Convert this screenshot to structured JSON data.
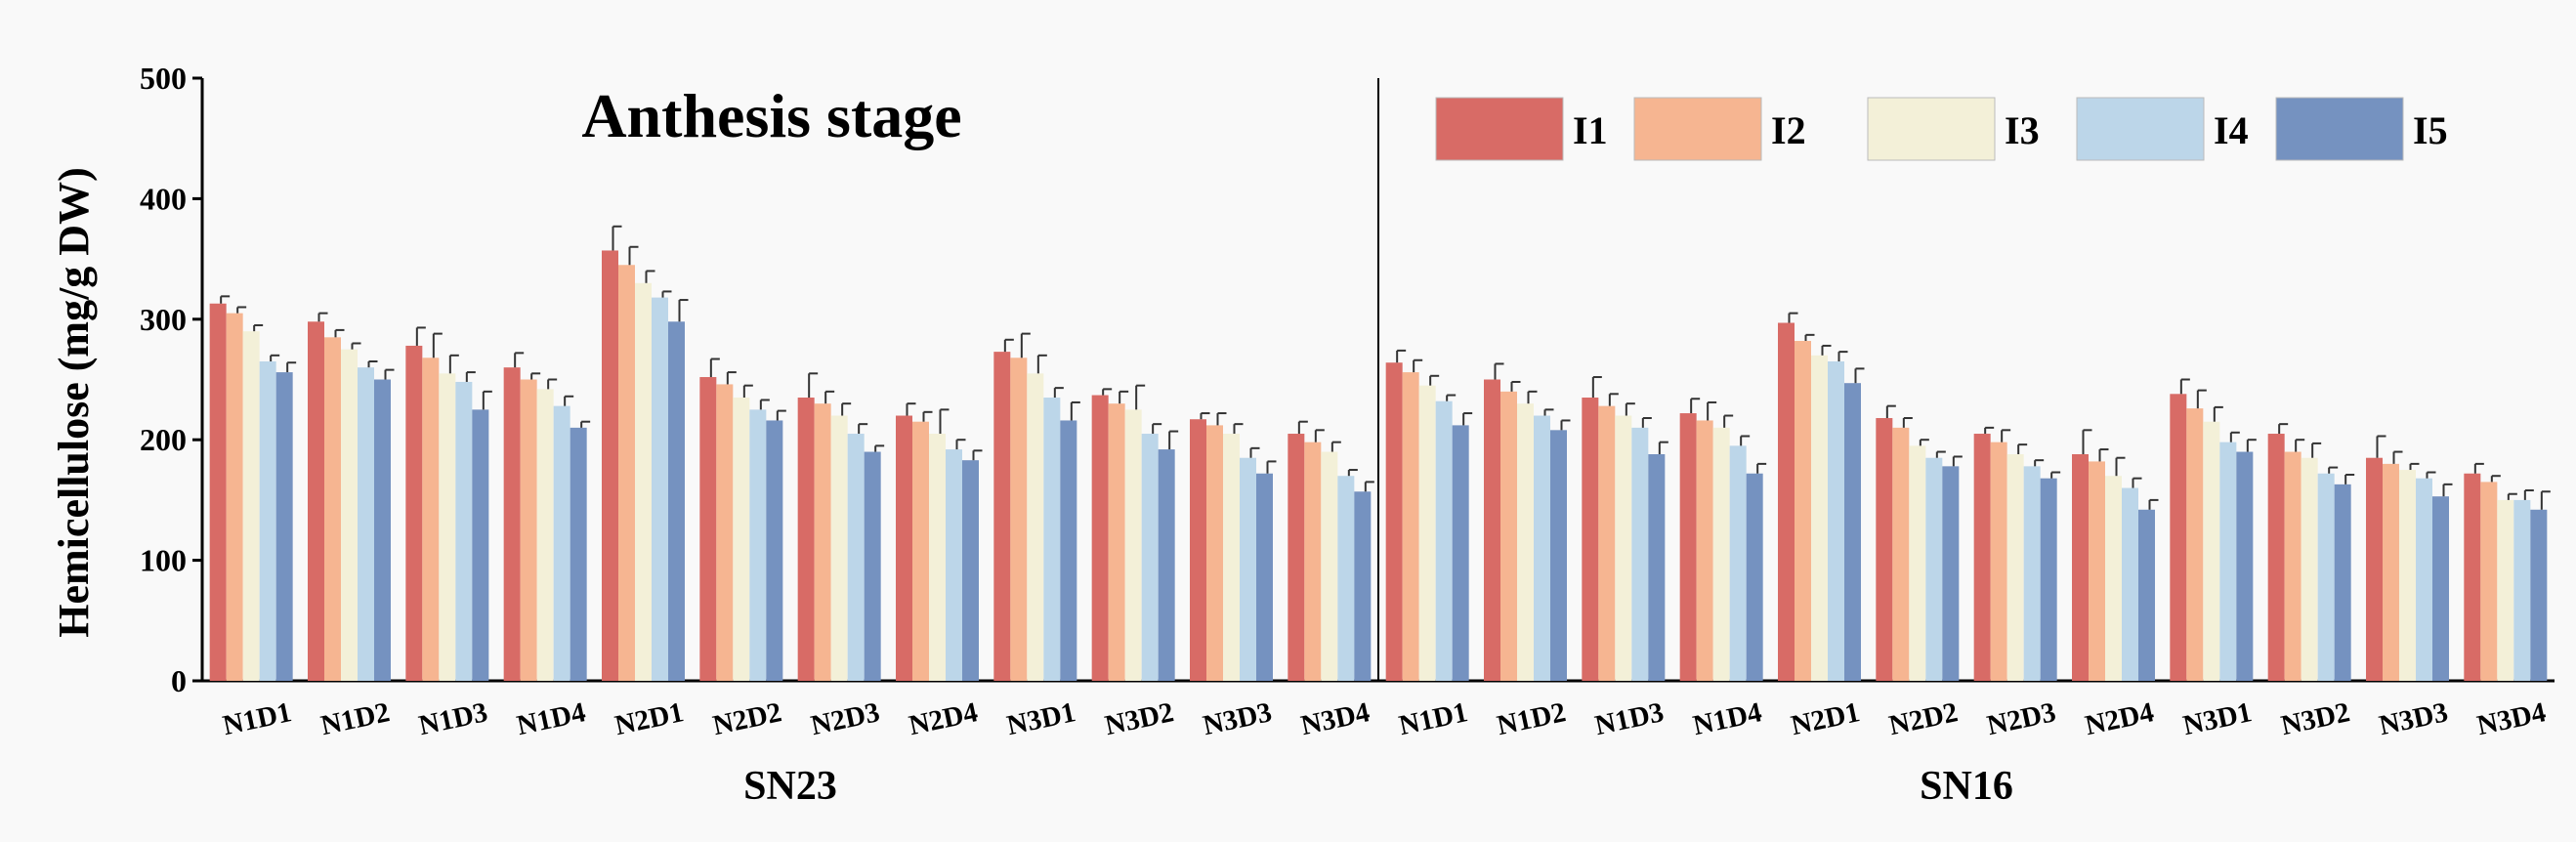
{
  "chart_data": {
    "type": "bar",
    "title": "Anthesis stage",
    "ylabel": "Hemicellulose (mg/g DW)",
    "xlabel": "",
    "ylim": [
      0,
      500
    ],
    "yticks": [
      0,
      100,
      200,
      300,
      400,
      500
    ],
    "legend_position": "top-right",
    "groups": [
      "SN23",
      "SN16"
    ],
    "categories": [
      "N1D1",
      "N1D2",
      "N1D3",
      "N1D4",
      "N2D1",
      "N2D2",
      "N2D3",
      "N2D4",
      "N3D1",
      "N3D2",
      "N3D3",
      "N3D4"
    ],
    "colors": [
      "#d86b66",
      "#f6b591",
      "#f3f0d8",
      "#bcd6e9",
      "#7592c0"
    ],
    "series": [
      {
        "name": "I1",
        "SN23": [
          313,
          298,
          278,
          260,
          357,
          252,
          235,
          220,
          273,
          237,
          217,
          205
        ],
        "SN16": [
          264,
          250,
          235,
          222,
          297,
          218,
          205,
          188,
          238,
          205,
          185,
          172
        ]
      },
      {
        "name": "I2",
        "SN23": [
          305,
          285,
          268,
          250,
          345,
          246,
          230,
          215,
          268,
          230,
          212,
          198
        ],
        "SN16": [
          256,
          240,
          228,
          216,
          282,
          210,
          198,
          182,
          226,
          190,
          180,
          165
        ]
      },
      {
        "name": "I3",
        "SN23": [
          290,
          275,
          255,
          242,
          330,
          235,
          220,
          205,
          255,
          225,
          205,
          190
        ],
        "SN16": [
          245,
          230,
          220,
          210,
          270,
          195,
          188,
          170,
          215,
          185,
          175,
          150
        ]
      },
      {
        "name": "I4",
        "SN23": [
          265,
          260,
          248,
          228,
          318,
          225,
          205,
          192,
          235,
          205,
          185,
          170
        ],
        "SN16": [
          232,
          220,
          210,
          195,
          265,
          185,
          178,
          160,
          198,
          172,
          168,
          150
        ]
      },
      {
        "name": "I5",
        "SN23": [
          256,
          250,
          225,
          210,
          298,
          216,
          190,
          183,
          216,
          192,
          172,
          157
        ],
        "SN16": [
          212,
          208,
          188,
          172,
          247,
          178,
          168,
          142,
          190,
          163,
          153,
          142
        ]
      }
    ],
    "errors": [
      {
        "SN23": [
          6,
          7,
          15,
          12,
          20,
          15,
          20,
          10,
          10,
          5,
          5,
          10
        ],
        "SN16": [
          10,
          13,
          17,
          12,
          8,
          10,
          5,
          20,
          12,
          8,
          18,
          8
        ]
      },
      {
        "SN23": [
          5,
          6,
          20,
          5,
          15,
          10,
          10,
          8,
          20,
          10,
          10,
          10
        ],
        "SN16": [
          10,
          8,
          10,
          15,
          5,
          8,
          10,
          10,
          15,
          10,
          10,
          5
        ]
      },
      {
        "SN23": [
          5,
          5,
          15,
          8,
          10,
          10,
          10,
          20,
          15,
          20,
          8,
          8
        ],
        "SN16": [
          8,
          10,
          10,
          10,
          8,
          5,
          8,
          15,
          12,
          12,
          5,
          5
        ]
      },
      {
        "SN23": [
          5,
          5,
          8,
          8,
          5,
          8,
          8,
          8,
          8,
          8,
          8,
          5
        ],
        "SN16": [
          5,
          5,
          8,
          8,
          8,
          5,
          5,
          8,
          8,
          5,
          5,
          8
        ]
      },
      {
        "SN23": [
          8,
          8,
          15,
          5,
          18,
          8,
          5,
          8,
          15,
          15,
          10,
          8
        ],
        "SN16": [
          10,
          8,
          10,
          8,
          12,
          8,
          5,
          8,
          10,
          8,
          10,
          15
        ]
      }
    ]
  }
}
